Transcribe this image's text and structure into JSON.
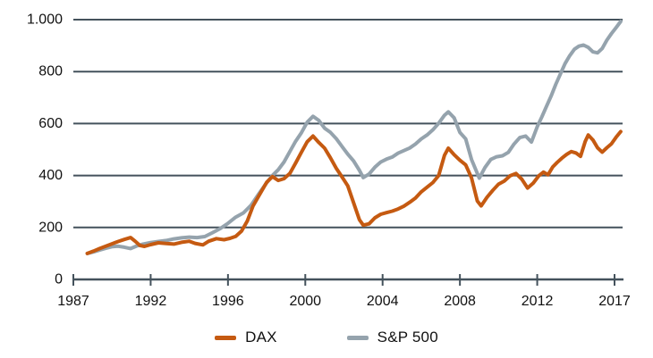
{
  "chart_data": {
    "type": "line",
    "grid": true,
    "legend_position": "bottom",
    "colors": {
      "dax": "#C55A11",
      "sp500": "#95A3AD",
      "axis": "#44525C",
      "text": "#111111",
      "background": "#FFFFFF"
    },
    "y_axis": {
      "min": 0,
      "max": 1000,
      "ticks": [
        {
          "value": 0,
          "label": "0"
        },
        {
          "value": 200,
          "label": "200"
        },
        {
          "value": 400,
          "label": "400"
        },
        {
          "value": 600,
          "label": "600"
        },
        {
          "value": 800,
          "label": "800"
        },
        {
          "value": 1000,
          "label": "1.000"
        }
      ]
    },
    "x_axis": {
      "ticks": [
        {
          "year": 1987,
          "label": "1987"
        },
        {
          "year": 1992,
          "label": "1992"
        },
        {
          "year": 1996,
          "label": "1996"
        },
        {
          "year": 2000,
          "label": "2000"
        },
        {
          "year": 2004,
          "label": "2004"
        },
        {
          "year": 2008,
          "label": "2008"
        },
        {
          "year": 2012,
          "label": "2012"
        },
        {
          "year": 2017,
          "label": "2017"
        }
      ]
    },
    "series": [
      {
        "name": "DAX",
        "color": "#C55A11",
        "points": [
          [
            1987.9,
            100
          ],
          [
            1988.3,
            109
          ],
          [
            1988.7,
            119
          ],
          [
            1989.1,
            128
          ],
          [
            1989.5,
            137
          ],
          [
            1989.9,
            146
          ],
          [
            1990.3,
            154
          ],
          [
            1990.7,
            161
          ],
          [
            1991.0,
            147
          ],
          [
            1991.3,
            131
          ],
          [
            1991.6,
            127
          ],
          [
            1992.0,
            134
          ],
          [
            1992.4,
            141
          ],
          [
            1992.8,
            138
          ],
          [
            1993.2,
            136
          ],
          [
            1993.6,
            143
          ],
          [
            1994.0,
            147
          ],
          [
            1994.3,
            139
          ],
          [
            1994.7,
            133
          ],
          [
            1995.0,
            147
          ],
          [
            1995.4,
            157
          ],
          [
            1995.8,
            153
          ],
          [
            1996.1,
            158
          ],
          [
            1996.4,
            166
          ],
          [
            1996.7,
            186
          ],
          [
            1997.0,
            225
          ],
          [
            1997.3,
            283
          ],
          [
            1997.7,
            335
          ],
          [
            1998.0,
            374
          ],
          [
            1998.3,
            396
          ],
          [
            1998.6,
            381
          ],
          [
            1998.9,
            388
          ],
          [
            1999.2,
            408
          ],
          [
            1999.5,
            448
          ],
          [
            1999.8,
            490
          ],
          [
            2000.1,
            530
          ],
          [
            2000.4,
            552
          ],
          [
            2000.7,
            527
          ],
          [
            2001.0,
            505
          ],
          [
            2001.3,
            468
          ],
          [
            2001.6,
            428
          ],
          [
            2001.9,
            395
          ],
          [
            2002.2,
            360
          ],
          [
            2002.5,
            295
          ],
          [
            2002.8,
            230
          ],
          [
            2003.0,
            209
          ],
          [
            2003.3,
            214
          ],
          [
            2003.6,
            237
          ],
          [
            2003.9,
            251
          ],
          [
            2004.2,
            257
          ],
          [
            2004.5,
            263
          ],
          [
            2004.8,
            271
          ],
          [
            2005.1,
            282
          ],
          [
            2005.4,
            297
          ],
          [
            2005.7,
            313
          ],
          [
            2006.0,
            337
          ],
          [
            2006.3,
            355
          ],
          [
            2006.6,
            373
          ],
          [
            2006.9,
            400
          ],
          [
            2007.2,
            478
          ],
          [
            2007.4,
            505
          ],
          [
            2007.7,
            480
          ],
          [
            2008.0,
            459
          ],
          [
            2008.3,
            441
          ],
          [
            2008.6,
            391
          ],
          [
            2008.9,
            302
          ],
          [
            2009.1,
            283
          ],
          [
            2009.4,
            316
          ],
          [
            2009.7,
            343
          ],
          [
            2010.0,
            367
          ],
          [
            2010.3,
            379
          ],
          [
            2010.6,
            399
          ],
          [
            2010.9,
            408
          ],
          [
            2011.2,
            386
          ],
          [
            2011.5,
            352
          ],
          [
            2011.8,
            371
          ],
          [
            2012.1,
            399
          ],
          [
            2012.4,
            413
          ],
          [
            2012.7,
            403
          ],
          [
            2013.0,
            433
          ],
          [
            2013.3,
            451
          ],
          [
            2013.6,
            467
          ],
          [
            2013.9,
            481
          ],
          [
            2014.2,
            492
          ],
          [
            2014.5,
            487
          ],
          [
            2014.8,
            474
          ],
          [
            2015.1,
            531
          ],
          [
            2015.3,
            556
          ],
          [
            2015.6,
            537
          ],
          [
            2015.9,
            507
          ],
          [
            2016.2,
            490
          ],
          [
            2016.5,
            507
          ],
          [
            2016.8,
            522
          ],
          [
            2017.1,
            547
          ],
          [
            2017.4,
            569
          ]
        ]
      },
      {
        "name": "S&P 500",
        "color": "#95A3AD",
        "points": [
          [
            1987.9,
            100
          ],
          [
            1988.3,
            106
          ],
          [
            1988.7,
            113
          ],
          [
            1989.1,
            120
          ],
          [
            1989.5,
            126
          ],
          [
            1989.9,
            128
          ],
          [
            1990.3,
            124
          ],
          [
            1990.7,
            119
          ],
          [
            1991.1,
            129
          ],
          [
            1991.5,
            136
          ],
          [
            1992.0,
            142
          ],
          [
            1992.4,
            146
          ],
          [
            1992.8,
            150
          ],
          [
            1993.2,
            156
          ],
          [
            1993.6,
            160
          ],
          [
            1994.0,
            163
          ],
          [
            1994.4,
            161
          ],
          [
            1994.8,
            165
          ],
          [
            1995.2,
            180
          ],
          [
            1995.6,
            196
          ],
          [
            1996.0,
            216
          ],
          [
            1996.4,
            240
          ],
          [
            1996.8,
            256
          ],
          [
            1997.2,
            286
          ],
          [
            1997.6,
            330
          ],
          [
            1998.0,
            372
          ],
          [
            1998.3,
            400
          ],
          [
            1998.6,
            422
          ],
          [
            1998.9,
            452
          ],
          [
            1999.2,
            492
          ],
          [
            1999.5,
            532
          ],
          [
            1999.8,
            565
          ],
          [
            2000.1,
            605
          ],
          [
            2000.4,
            628
          ],
          [
            2000.7,
            612
          ],
          [
            2001.0,
            582
          ],
          [
            2001.3,
            566
          ],
          [
            2001.6,
            542
          ],
          [
            2001.9,
            512
          ],
          [
            2002.2,
            482
          ],
          [
            2002.5,
            456
          ],
          [
            2002.8,
            420
          ],
          [
            2003.0,
            392
          ],
          [
            2003.3,
            406
          ],
          [
            2003.6,
            432
          ],
          [
            2003.9,
            452
          ],
          [
            2004.2,
            463
          ],
          [
            2004.5,
            471
          ],
          [
            2004.8,
            486
          ],
          [
            2005.1,
            496
          ],
          [
            2005.4,
            506
          ],
          [
            2005.7,
            521
          ],
          [
            2006.0,
            541
          ],
          [
            2006.3,
            556
          ],
          [
            2006.6,
            576
          ],
          [
            2006.9,
            601
          ],
          [
            2007.2,
            632
          ],
          [
            2007.4,
            645
          ],
          [
            2007.7,
            622
          ],
          [
            2008.0,
            566
          ],
          [
            2008.3,
            541
          ],
          [
            2008.6,
            462
          ],
          [
            2009.0,
            390
          ],
          [
            2009.3,
            431
          ],
          [
            2009.6,
            462
          ],
          [
            2009.9,
            472
          ],
          [
            2010.2,
            476
          ],
          [
            2010.5,
            489
          ],
          [
            2010.8,
            521
          ],
          [
            2011.1,
            546
          ],
          [
            2011.4,
            552
          ],
          [
            2011.7,
            529
          ],
          [
            2012.0,
            588
          ],
          [
            2012.3,
            626
          ],
          [
            2012.6,
            666
          ],
          [
            2012.9,
            706
          ],
          [
            2013.2,
            751
          ],
          [
            2013.5,
            791
          ],
          [
            2013.8,
            831
          ],
          [
            2014.1,
            861
          ],
          [
            2014.4,
            886
          ],
          [
            2014.7,
            898
          ],
          [
            2015.0,
            902
          ],
          [
            2015.3,
            893
          ],
          [
            2015.6,
            876
          ],
          [
            2015.9,
            872
          ],
          [
            2016.2,
            889
          ],
          [
            2016.5,
            921
          ],
          [
            2016.8,
            946
          ],
          [
            2017.1,
            969
          ],
          [
            2017.4,
            993
          ]
        ]
      }
    ]
  }
}
